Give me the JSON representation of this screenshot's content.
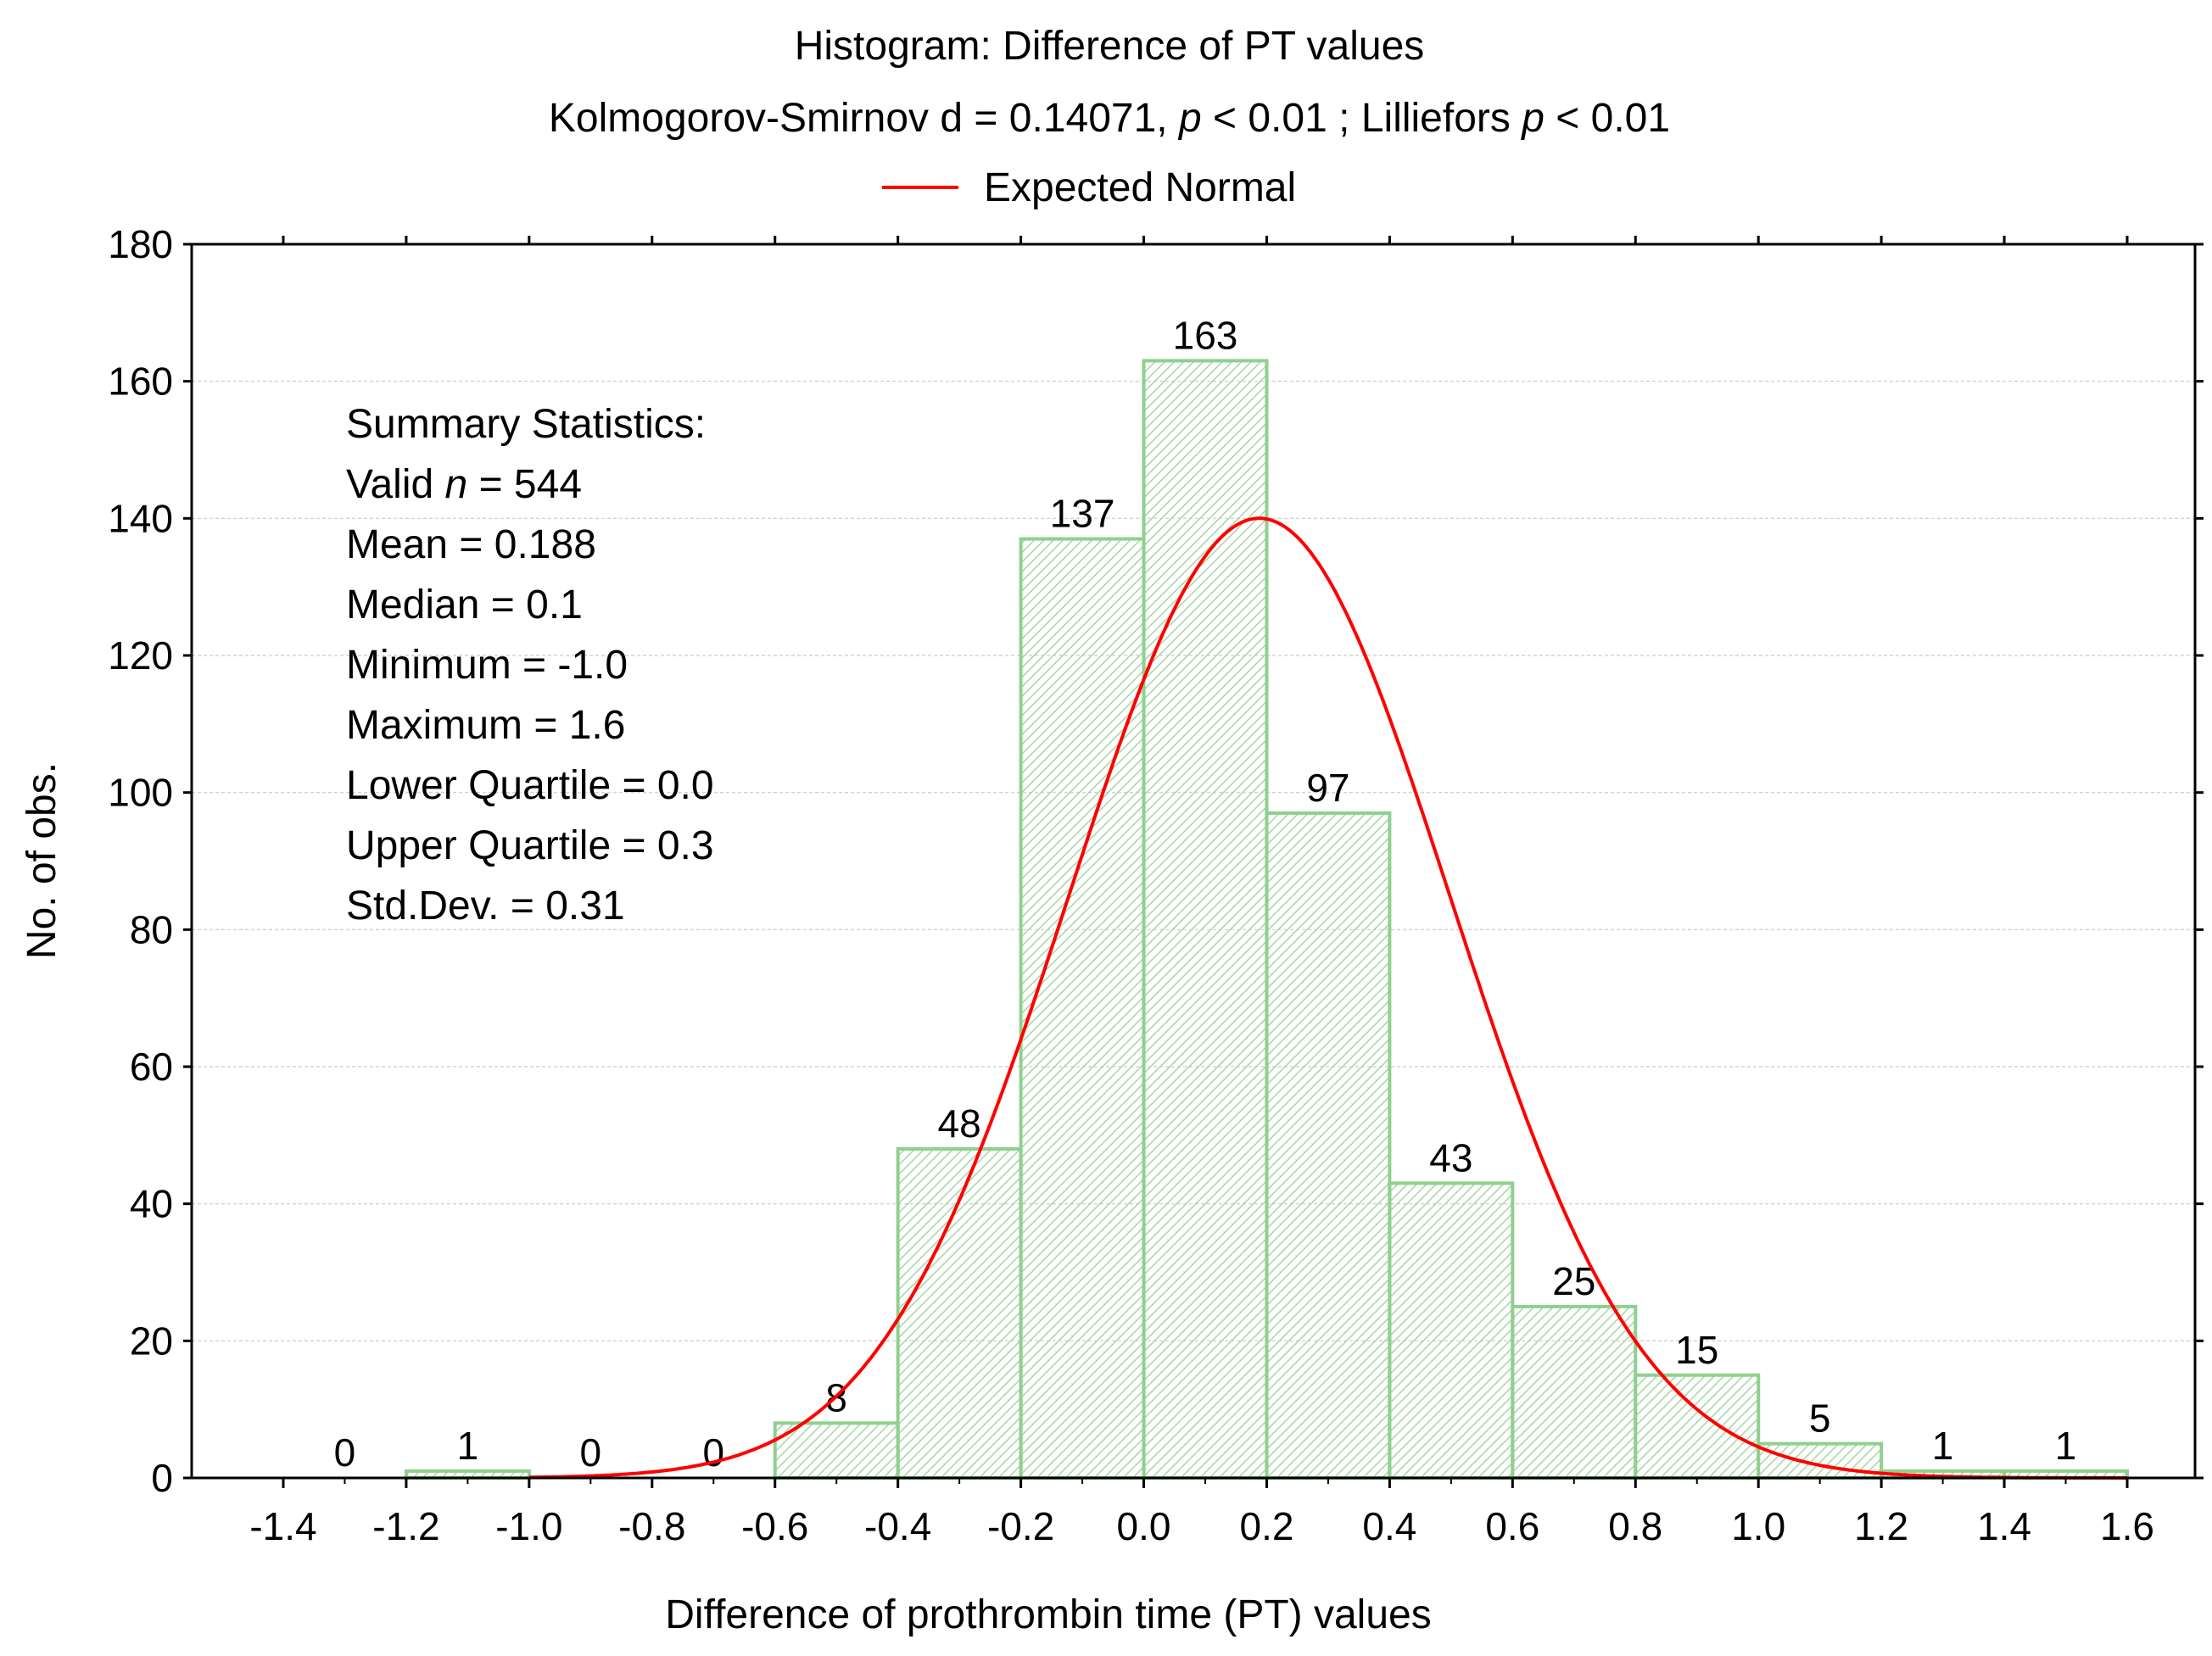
{
  "chart_data": {
    "type": "bar",
    "title": "Histogram: Difference of PT values",
    "subtitle": {
      "prefix": "Kolmogorov-Smirnov d = 0.14071,",
      "p1": "p",
      "mid": "< 0.01 ; Lilliefors",
      "p2": "p",
      "suffix": "< 0.01"
    },
    "legend": {
      "label": "Expected Normal",
      "color": "#ff0000",
      "placement": "top"
    },
    "xlabel": "Difference of prothrombin time (PT) values",
    "ylabel": "No. of obs.",
    "xlim": [
      -1.6,
      1.6
    ],
    "ylim": [
      0,
      180
    ],
    "x_ticks": [
      "-1.4",
      "-1.2",
      "-1.0",
      "-0.8",
      "-0.6",
      "-0.4",
      "-0.2",
      "0.0",
      "0.2",
      "0.4",
      "0.6",
      "0.8",
      "1.0",
      "1.2",
      "1.4",
      "1.6"
    ],
    "y_ticks": [
      "0",
      "20",
      "40",
      "60",
      "80",
      "100",
      "120",
      "140",
      "160",
      "180"
    ],
    "bins": [
      {
        "from": -1.4,
        "to": -1.2,
        "count": 0
      },
      {
        "from": -1.2,
        "to": -1.0,
        "count": 1
      },
      {
        "from": -1.0,
        "to": -0.8,
        "count": 0
      },
      {
        "from": -0.8,
        "to": -0.6,
        "count": 0
      },
      {
        "from": -0.6,
        "to": -0.4,
        "count": 8
      },
      {
        "from": -0.4,
        "to": -0.2,
        "count": 48
      },
      {
        "from": -0.2,
        "to": 0.0,
        "count": 137
      },
      {
        "from": 0.0,
        "to": 0.2,
        "count": 163
      },
      {
        "from": 0.2,
        "to": 0.4,
        "count": 97
      },
      {
        "from": 0.4,
        "to": 0.6,
        "count": 43
      },
      {
        "from": 0.6,
        "to": 0.8,
        "count": 25
      },
      {
        "from": 0.8,
        "to": 1.0,
        "count": 15
      },
      {
        "from": 1.0,
        "to": 1.2,
        "count": 5
      },
      {
        "from": 1.2,
        "to": 1.4,
        "count": 1
      },
      {
        "from": 1.4,
        "to": 1.6,
        "count": 1
      }
    ],
    "expected_normal": {
      "n": 544,
      "mean": 0.188,
      "sd": 0.31,
      "bin_width": 0.2
    },
    "grid": true,
    "colors": {
      "bar_stroke": "#8fd08f",
      "hatch": "#a6d6a6",
      "curve": "#ff0000"
    }
  },
  "summary": {
    "heading": "Summary Statistics:",
    "valid_prefix": "Valid",
    "valid_n": "n",
    "valid_suffix": "= 544",
    "mean": "Mean = 0.188",
    "median": "Median = 0.1",
    "minimum": "Minimum = -1.0",
    "maximum": "Maximum = 1.6",
    "lower_quartile": "Lower Quartile = 0.0",
    "upper_quartile": "Upper Quartile = 0.3",
    "std_dev": "Std.Dev. = 0.31"
  }
}
